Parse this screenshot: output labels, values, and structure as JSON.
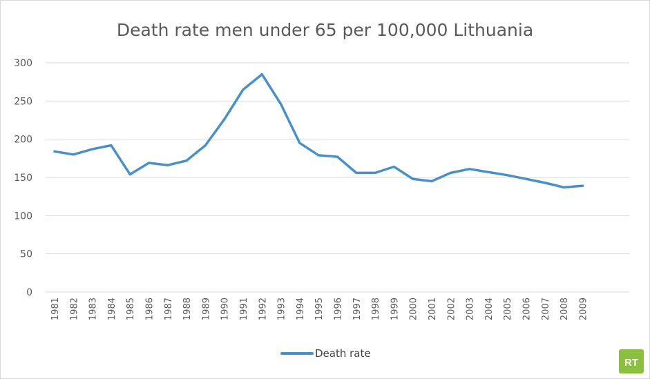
{
  "chart_data": {
    "type": "line",
    "title": "Death rate men under 65 per 100,000 Lithuania",
    "xlabel": "",
    "ylabel": "",
    "ylim": [
      0,
      300
    ],
    "yticks": [
      0,
      50,
      100,
      150,
      200,
      250,
      300
    ],
    "grid": true,
    "legend_position": "bottom",
    "categories": [
      "1981",
      "1982",
      "1983",
      "1984",
      "1985",
      "1986",
      "1987",
      "1988",
      "1989",
      "1990",
      "1991",
      "1992",
      "1993",
      "1994",
      "1995",
      "1996",
      "1997",
      "1998",
      "1999",
      "2000",
      "2001",
      "2002",
      "2003",
      "2004",
      "2005",
      "2006",
      "2007",
      "2008",
      "2009"
    ],
    "series": [
      {
        "name": "Death rate",
        "color": "#4a90c8",
        "values": [
          184,
          180,
          187,
          192,
          154,
          169,
          166,
          172,
          192,
          226,
          265,
          285,
          246,
          195,
          179,
          177,
          156,
          156,
          164,
          148,
          145,
          156,
          161,
          157,
          153,
          148,
          143,
          137,
          139
        ]
      }
    ]
  },
  "logo": {
    "text": "RT",
    "color": "#8cbf3f",
    "name": "rt-logo"
  }
}
